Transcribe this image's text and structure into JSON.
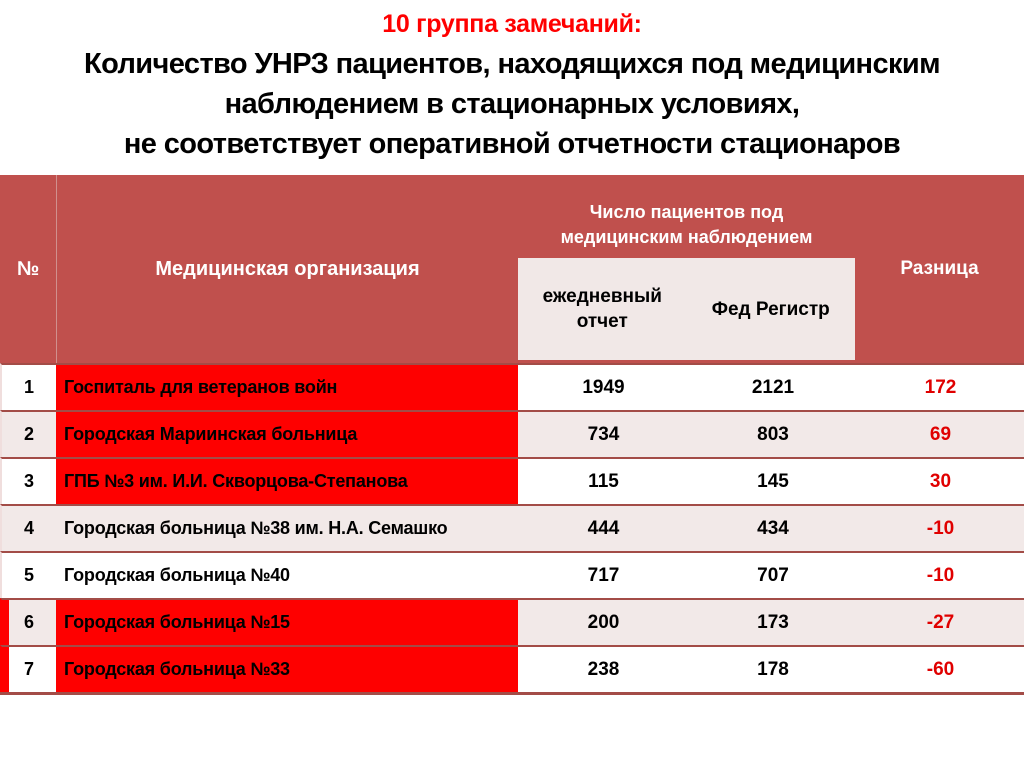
{
  "title": {
    "heading": "10 группа замечаний:",
    "lines": [
      "Количество УНРЗ пациентов, находящихся под медицинским",
      "наблюдением в стационарных условиях,",
      "не соответствует оперативной отчетности стационаров"
    ]
  },
  "table": {
    "header": {
      "num": "№",
      "org": "Медицинская организация",
      "group": "Число пациентов под медицинским наблюдением",
      "daily": "ежедневный отчет",
      "fed": "Фед Регистр",
      "diff": "Разница"
    },
    "rows": [
      {
        "num": "1",
        "org": "Госпиталь для ветеранов войн",
        "daily": "1949",
        "fed": "2121",
        "diff": "172",
        "highlighted": true
      },
      {
        "num": "2",
        "org": "Городская Мариинская больница",
        "daily": "734",
        "fed": "803",
        "diff": "69",
        "highlighted": true
      },
      {
        "num": "3",
        "org": "ГПБ №3 им. И.И. Скворцова-Степанова",
        "daily": "115",
        "fed": "145",
        "diff": "30",
        "highlighted": true
      },
      {
        "num": "4",
        "org": "Городская больница №38 им. Н.А. Семашко",
        "daily": "444",
        "fed": "434",
        "diff": "-10",
        "highlighted": false
      },
      {
        "num": "5",
        "org": "Городская больница №40",
        "daily": "717",
        "fed": "707",
        "diff": "-10",
        "highlighted": false
      },
      {
        "num": "6",
        "org": "Городская больница №15",
        "daily": "200",
        "fed": "173",
        "diff": "-27",
        "highlighted": true
      },
      {
        "num": "7",
        "org": "Городская больница №33",
        "daily": "238",
        "fed": "178",
        "diff": "-60",
        "highlighted": true
      }
    ]
  },
  "colors": {
    "title_accent": "#FF0000",
    "header_bg": "#C0504D",
    "highlight_bg": "#FE0000",
    "difference_text": "#E00000",
    "band_row_bg": "#F2E9E8",
    "subheader_bg": "#F1E8E7",
    "border": "#A34C47"
  }
}
